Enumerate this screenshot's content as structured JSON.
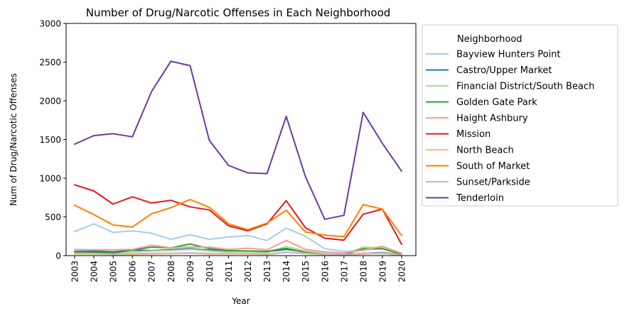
{
  "chart_data": {
    "type": "line",
    "title": "Number of Drug/Narcotic Offenses in Each Neighborhood",
    "xlabel": "Year",
    "ylabel": "Num of Drug/Narcotic Offenses",
    "ylim": [
      0,
      3000
    ],
    "yticks": [
      0,
      500,
      1000,
      1500,
      2000,
      2500,
      3000
    ],
    "x": [
      "2003",
      "2004",
      "2005",
      "2006",
      "2007",
      "2008",
      "2009",
      "2010",
      "2011",
      "2012",
      "2013",
      "2014",
      "2015",
      "2016",
      "2017",
      "2018",
      "2019",
      "2020"
    ],
    "grid": false,
    "legend": {
      "title": "Neighborhood",
      "placement": "right-outside"
    },
    "series": [
      {
        "name": "Bayview Hunters Point",
        "color": "#a6cee3",
        "values": [
          310,
          410,
          300,
          320,
          290,
          210,
          270,
          210,
          240,
          260,
          195,
          355,
          250,
          90,
          55,
          70,
          90,
          20
        ]
      },
      {
        "name": "Castro/Upper Market",
        "color": "#1f78b4",
        "values": [
          55,
          60,
          50,
          70,
          65,
          75,
          90,
          70,
          55,
          60,
          50,
          80,
          50,
          25,
          15,
          30,
          40,
          10
        ]
      },
      {
        "name": "Financial District/South Beach",
        "color": "#b2df8a",
        "values": [
          40,
          35,
          30,
          45,
          60,
          65,
          80,
          60,
          45,
          50,
          35,
          120,
          60,
          30,
          20,
          110,
          100,
          20
        ]
      },
      {
        "name": "Golden Gate Park",
        "color": "#33a02c",
        "values": [
          50,
          45,
          35,
          70,
          110,
          100,
          150,
          90,
          65,
          60,
          55,
          95,
          40,
          15,
          10,
          90,
          90,
          15
        ]
      },
      {
        "name": "Haight Ashbury",
        "color": "#fb9a99",
        "values": [
          80,
          75,
          75,
          80,
          135,
          100,
          110,
          110,
          80,
          95,
          75,
          195,
          80,
          50,
          35,
          70,
          120,
          30
        ]
      },
      {
        "name": "Mission",
        "color": "#e31a1c",
        "values": [
          915,
          835,
          665,
          760,
          680,
          715,
          630,
          590,
          385,
          320,
          410,
          710,
          360,
          225,
          200,
          535,
          600,
          145
        ]
      },
      {
        "name": "North Beach",
        "color": "#fdbf6f",
        "values": [
          20,
          20,
          15,
          15,
          20,
          25,
          30,
          20,
          20,
          20,
          15,
          40,
          25,
          10,
          5,
          20,
          25,
          5
        ]
      },
      {
        "name": "South of Market",
        "color": "#ff7f00",
        "values": [
          650,
          530,
          395,
          370,
          540,
          620,
          725,
          625,
          410,
          335,
          420,
          585,
          305,
          265,
          245,
          660,
          600,
          260
        ]
      },
      {
        "name": "Sunset/Parkside",
        "color": "#cab2d6",
        "values": [
          30,
          25,
          20,
          25,
          30,
          30,
          35,
          30,
          25,
          25,
          20,
          45,
          30,
          15,
          10,
          30,
          35,
          10
        ]
      },
      {
        "name": "Tenderloin",
        "color": "#6a3d9a",
        "values": [
          1440,
          1550,
          1575,
          1535,
          2120,
          2510,
          2455,
          1490,
          1165,
          1070,
          1060,
          1800,
          1020,
          470,
          520,
          1850,
          1450,
          1090
        ]
      }
    ]
  }
}
